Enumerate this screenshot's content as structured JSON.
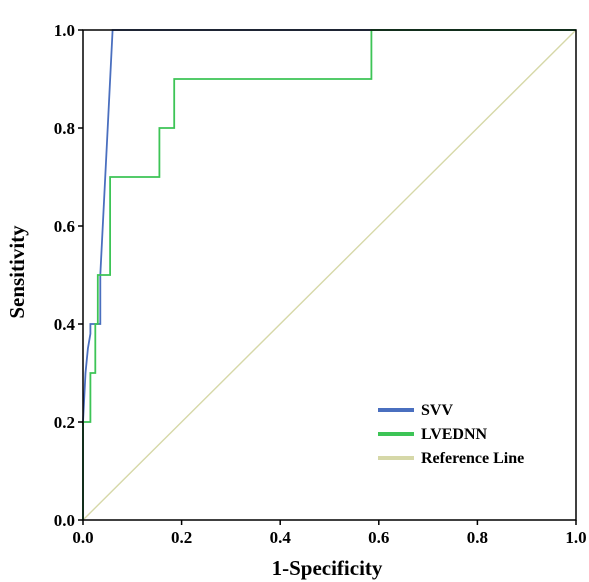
{
  "chart_data": {
    "type": "line",
    "title": "",
    "xlabel": "1-Specificity",
    "ylabel": "Sensitivity",
    "xlim": [
      0,
      1
    ],
    "ylim": [
      0,
      1
    ],
    "x_ticks": [
      "0.0",
      "0.2",
      "0.4",
      "0.6",
      "0.8",
      "1.0"
    ],
    "y_ticks": [
      "0.0",
      "0.2",
      "0.4",
      "0.6",
      "0.8",
      "1.0"
    ],
    "grid": false,
    "legend_position": "bottom-right",
    "series": [
      {
        "name": "SVV",
        "color": "#4a6fbf",
        "x": [
          0.0,
          0.0,
          0.005,
          0.01,
          0.015,
          0.015,
          0.035,
          0.035,
          0.05,
          0.06,
          1.0
        ],
        "y": [
          0.0,
          0.2,
          0.3,
          0.35,
          0.38,
          0.4,
          0.4,
          0.5,
          0.8,
          1.0,
          1.0
        ]
      },
      {
        "name": "LVEDNN",
        "color": "#3dc456",
        "x": [
          0.0,
          0.0,
          0.015,
          0.015,
          0.025,
          0.025,
          0.03,
          0.03,
          0.055,
          0.055,
          0.155,
          0.155,
          0.185,
          0.185,
          0.575,
          0.585,
          0.585,
          1.0
        ],
        "y": [
          0.0,
          0.2,
          0.2,
          0.3,
          0.3,
          0.4,
          0.4,
          0.5,
          0.5,
          0.7,
          0.7,
          0.8,
          0.8,
          0.9,
          0.9,
          0.9,
          1.0,
          1.0
        ]
      },
      {
        "name": "Reference Line",
        "color": "#d6d8a8",
        "x": [
          0.0,
          1.0
        ],
        "y": [
          0.0,
          1.0
        ]
      }
    ]
  }
}
